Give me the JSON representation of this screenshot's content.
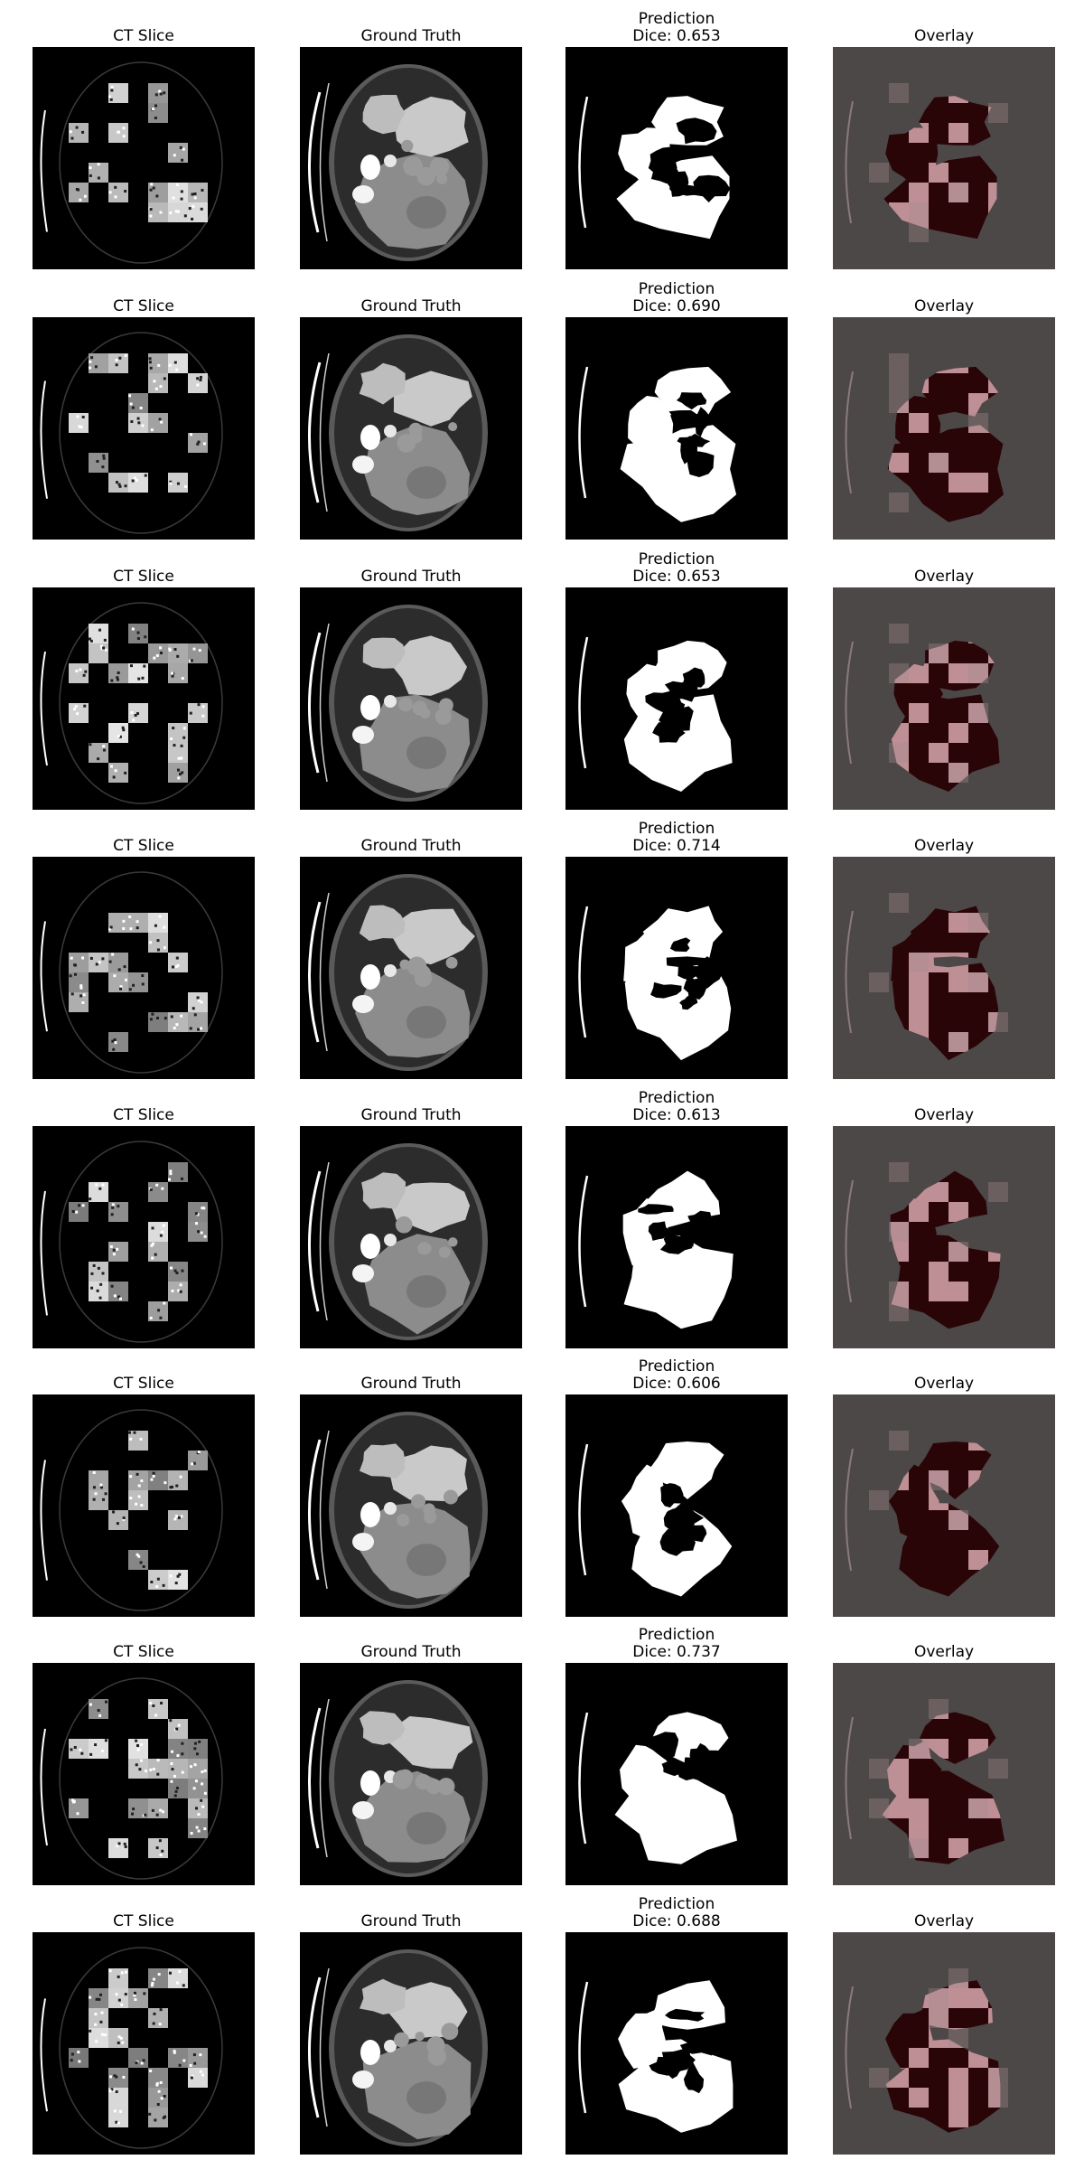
{
  "figure": {
    "rows": [
      {
        "ct_title": "CT Slice",
        "gt_title": "Ground Truth",
        "pred_title": "Prediction",
        "dice_label": "Dice: 0.653",
        "overlay_title": "Overlay"
      },
      {
        "ct_title": "CT Slice",
        "gt_title": "Ground Truth",
        "pred_title": "Prediction",
        "dice_label": "Dice: 0.690",
        "overlay_title": "Overlay"
      },
      {
        "ct_title": "CT Slice",
        "gt_title": "Ground Truth",
        "pred_title": "Prediction",
        "dice_label": "Dice: 0.653",
        "overlay_title": "Overlay"
      },
      {
        "ct_title": "CT Slice",
        "gt_title": "Ground Truth",
        "pred_title": "Prediction",
        "dice_label": "Dice: 0.714",
        "overlay_title": "Overlay"
      },
      {
        "ct_title": "CT Slice",
        "gt_title": "Ground Truth",
        "pred_title": "Prediction",
        "dice_label": "Dice: 0.613",
        "overlay_title": "Overlay"
      },
      {
        "ct_title": "CT Slice",
        "gt_title": "Ground Truth",
        "pred_title": "Prediction",
        "dice_label": "Dice: 0.606",
        "overlay_title": "Overlay"
      },
      {
        "ct_title": "CT Slice",
        "gt_title": "Ground Truth",
        "pred_title": "Prediction",
        "dice_label": "Dice: 0.737",
        "overlay_title": "Overlay"
      },
      {
        "ct_title": "CT Slice",
        "gt_title": "Ground Truth",
        "pred_title": "Prediction",
        "dice_label": "Dice: 0.688",
        "overlay_title": "Overlay"
      }
    ]
  },
  "colors": {
    "panel_background": "#000000",
    "overlay_background": "#4d4848",
    "overlay_mask": "#2a0508",
    "overlay_patch": "#d8a8ae",
    "tissue_light": "#c9c9c9",
    "tissue_mid": "#8c8c8c",
    "prediction_fill": "#ffffff"
  }
}
